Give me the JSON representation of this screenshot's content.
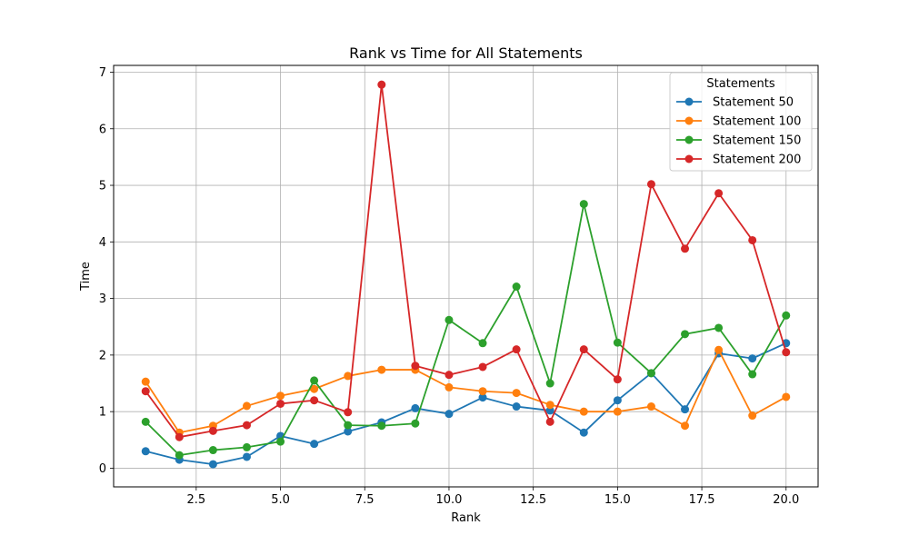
{
  "chart_data": {
    "type": "line",
    "title": "Rank vs Time for All Statements",
    "xlabel": "Rank",
    "ylabel": "Time",
    "xlim": [
      0.05,
      20.95
    ],
    "ylim": [
      -0.33,
      7.12
    ],
    "xticks": [
      2.5,
      5.0,
      7.5,
      10.0,
      12.5,
      15.0,
      17.5,
      20.0
    ],
    "xtick_labels": [
      "2.5",
      "5.0",
      "7.5",
      "10.0",
      "12.5",
      "15.0",
      "17.5",
      "20.0"
    ],
    "yticks": [
      0,
      1,
      2,
      3,
      4,
      5,
      6,
      7
    ],
    "ytick_labels": [
      "0",
      "1",
      "2",
      "3",
      "4",
      "5",
      "6",
      "7"
    ],
    "grid": true,
    "legend": {
      "title": "Statements",
      "placement": "top-right"
    },
    "x": [
      1,
      2,
      3,
      4,
      5,
      6,
      7,
      8,
      9,
      10,
      11,
      12,
      13,
      14,
      15,
      16,
      17,
      18,
      19,
      20
    ],
    "series": [
      {
        "name": "Statement 50",
        "color": "#1f77b4",
        "values": [
          0.3,
          0.15,
          0.07,
          0.2,
          0.57,
          0.43,
          0.65,
          0.81,
          1.06,
          0.96,
          1.25,
          1.09,
          1.02,
          0.63,
          1.2,
          1.68,
          1.04,
          2.03,
          1.94,
          2.21
        ]
      },
      {
        "name": "Statement 100",
        "color": "#ff7f0e",
        "values": [
          1.53,
          0.63,
          0.75,
          1.1,
          1.28,
          1.4,
          1.63,
          1.74,
          1.74,
          1.43,
          1.36,
          1.33,
          1.12,
          1.0,
          1.0,
          1.09,
          0.75,
          2.09,
          0.93,
          1.26
        ]
      },
      {
        "name": "Statement 150",
        "color": "#2ca02c",
        "values": [
          0.82,
          0.23,
          0.32,
          0.37,
          0.47,
          1.55,
          0.76,
          0.75,
          0.79,
          2.62,
          2.21,
          3.21,
          1.5,
          4.67,
          2.22,
          1.68,
          2.37,
          2.48,
          1.66,
          2.7
        ]
      },
      {
        "name": "Statement 200",
        "color": "#d62728",
        "values": [
          1.36,
          0.55,
          0.66,
          0.76,
          1.14,
          1.2,
          0.99,
          6.78,
          1.81,
          1.65,
          1.79,
          2.1,
          0.82,
          2.1,
          1.57,
          5.02,
          3.88,
          4.86,
          4.03,
          2.05
        ]
      }
    ]
  }
}
